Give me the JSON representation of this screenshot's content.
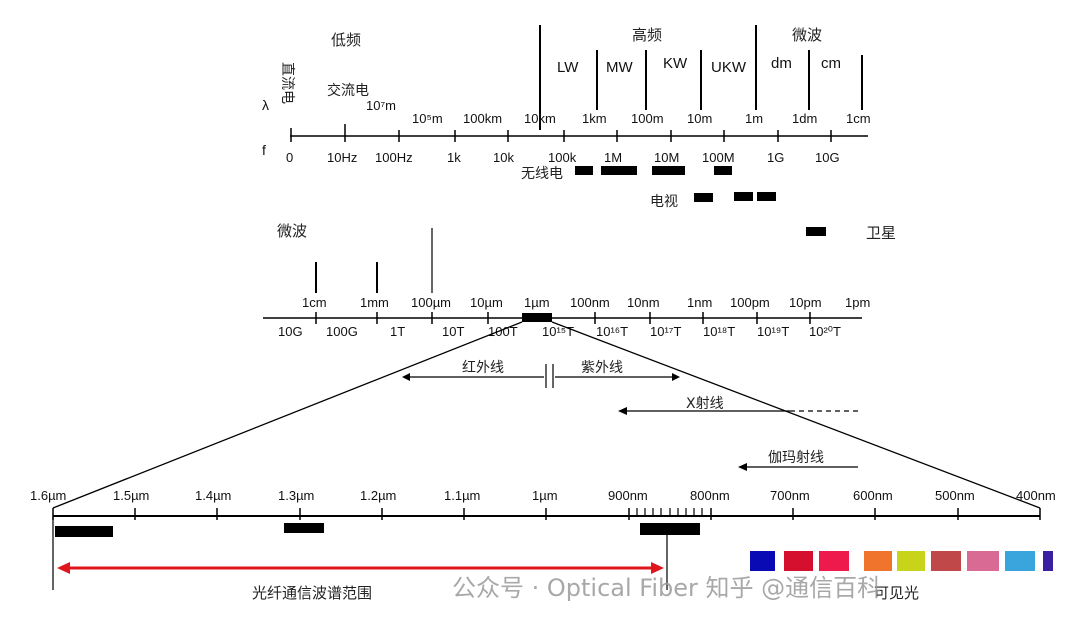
{
  "top": {
    "low_freq": "低频",
    "high_freq": "高频",
    "microwave": "微波",
    "dc": "直流电",
    "ac": "交流电",
    "lambda": "λ",
    "f": "f",
    "band_labels": [
      "LW",
      "MW",
      "KW",
      "UKW",
      "dm",
      "cm"
    ],
    "wavelength_labels": [
      "10⁷m",
      "10⁵m",
      "100km",
      "10km",
      "1km",
      "100m",
      "10m",
      "1m",
      "1dm",
      "1cm"
    ],
    "frequency_labels": [
      "0",
      "10Hz",
      "100Hz",
      "1k",
      "10k",
      "100k",
      "1M",
      "10M",
      "100M",
      "1G",
      "10G"
    ],
    "radio": "无线电",
    "tv": "电视",
    "satellite": "卫星"
  },
  "middle": {
    "microwave": "微波",
    "wavelength_labels": [
      "1cm",
      "1mm",
      "100µm",
      "10µm",
      "1µm",
      "100nm",
      "10nm",
      "1nm",
      "100pm",
      "10pm",
      "1pm"
    ],
    "frequency_labels": [
      "10G",
      "100G",
      "1T",
      "10T",
      "100T",
      "10¹⁵T",
      "10¹⁶T",
      "10¹⁷T",
      "10¹⁸T",
      "10¹⁹T",
      "10²⁰T"
    ],
    "infrared": "红外线",
    "ultraviolet": "紫外线",
    "xray": "X射线",
    "gamma": "伽玛射线"
  },
  "bottom": {
    "wavelength_labels": [
      "1.6µm",
      "1.5µm",
      "1.4µm",
      "1.3µm",
      "1.2µm",
      "1.1µm",
      "1µm",
      "900nm",
      "800nm",
      "700nm",
      "600nm",
      "500nm",
      "400nm"
    ],
    "fiber_range": "光纤通信波谱范围",
    "visible": "可见光",
    "visible_colors": [
      "#0a0ab4",
      "#d4102e",
      "#ee1a4c",
      "#f0742c",
      "#c8d41a",
      "#c04848",
      "#d86a94",
      "#3aa4dc",
      "#3a20a0"
    ]
  },
  "watermark": "公众号 · Optical Fiber 知乎 @通信百科"
}
